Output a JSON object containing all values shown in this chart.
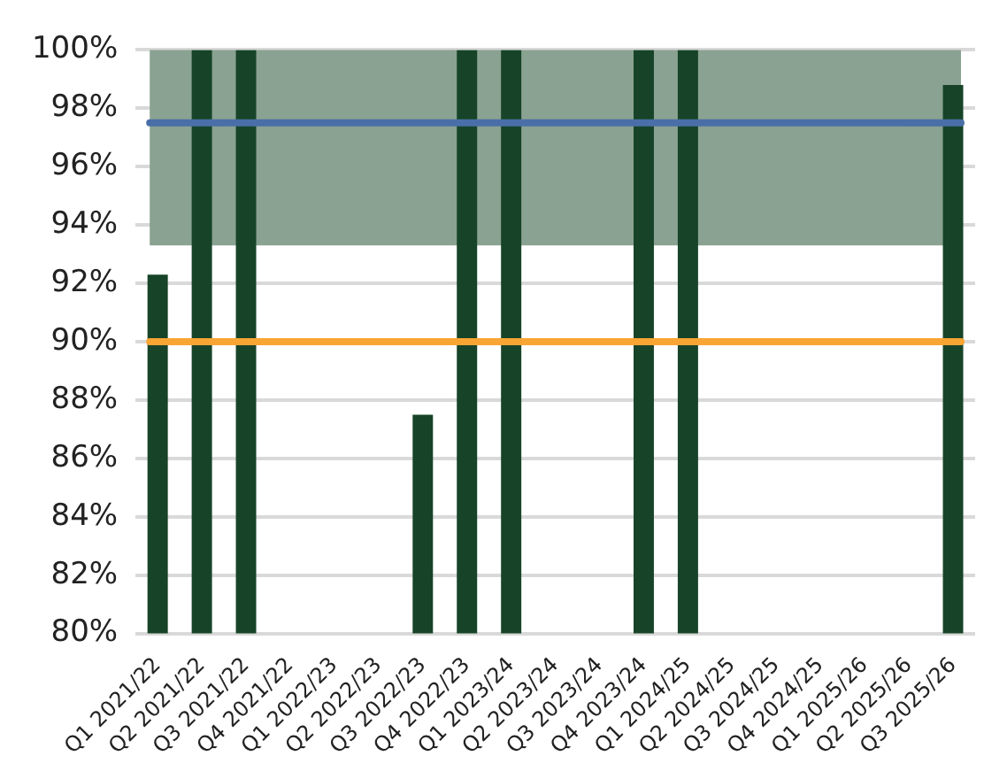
{
  "chart_data": {
    "type": "bar",
    "categories": [
      "Q1 2021/22",
      "Q2 2021/22",
      "Q3 2021/22",
      "Q4 2021/22",
      "Q1 2022/23",
      "Q2 2022/23",
      "Q3 2022/23",
      "Q4 2022/23",
      "Q1 2023/24",
      "Q2 2023/24",
      "Q3 2023/24",
      "Q4 2023/24",
      "Q1 2024/25",
      "Q2 2024/25",
      "Q3 2024/25",
      "Q4 2024/25",
      "Q1 2025/26",
      "Q2 2025/26",
      "Q3 2025/26"
    ],
    "values": [
      92.3,
      100,
      100,
      null,
      null,
      null,
      87.5,
      100,
      100,
      null,
      null,
      100,
      100,
      null,
      null,
      null,
      null,
      null,
      98.8
    ],
    "color": "#174428",
    "ylim": [
      80,
      100
    ],
    "yticks": [
      {
        "value": 80,
        "label": "80%"
      },
      {
        "value": 82,
        "label": "82%"
      },
      {
        "value": 84,
        "label": "84%"
      },
      {
        "value": 86,
        "label": "86%"
      },
      {
        "value": 88,
        "label": "88%"
      },
      {
        "value": 90,
        "label": "90%"
      },
      {
        "value": 92,
        "label": "92%"
      },
      {
        "value": 94,
        "label": "94%"
      },
      {
        "value": 96,
        "label": "96%"
      },
      {
        "value": 98,
        "label": "98%"
      },
      {
        "value": 100,
        "label": "100%"
      }
    ],
    "grid": "y",
    "bands": [
      {
        "axis": "y",
        "from": 93.3,
        "to": 100,
        "color": "#8aa291"
      }
    ],
    "ref_lines": [
      {
        "axis": "y",
        "value": 97.5,
        "color": "#4a6fa8"
      },
      {
        "axis": "y",
        "value": 90,
        "color": "#f8a533"
      }
    ]
  }
}
